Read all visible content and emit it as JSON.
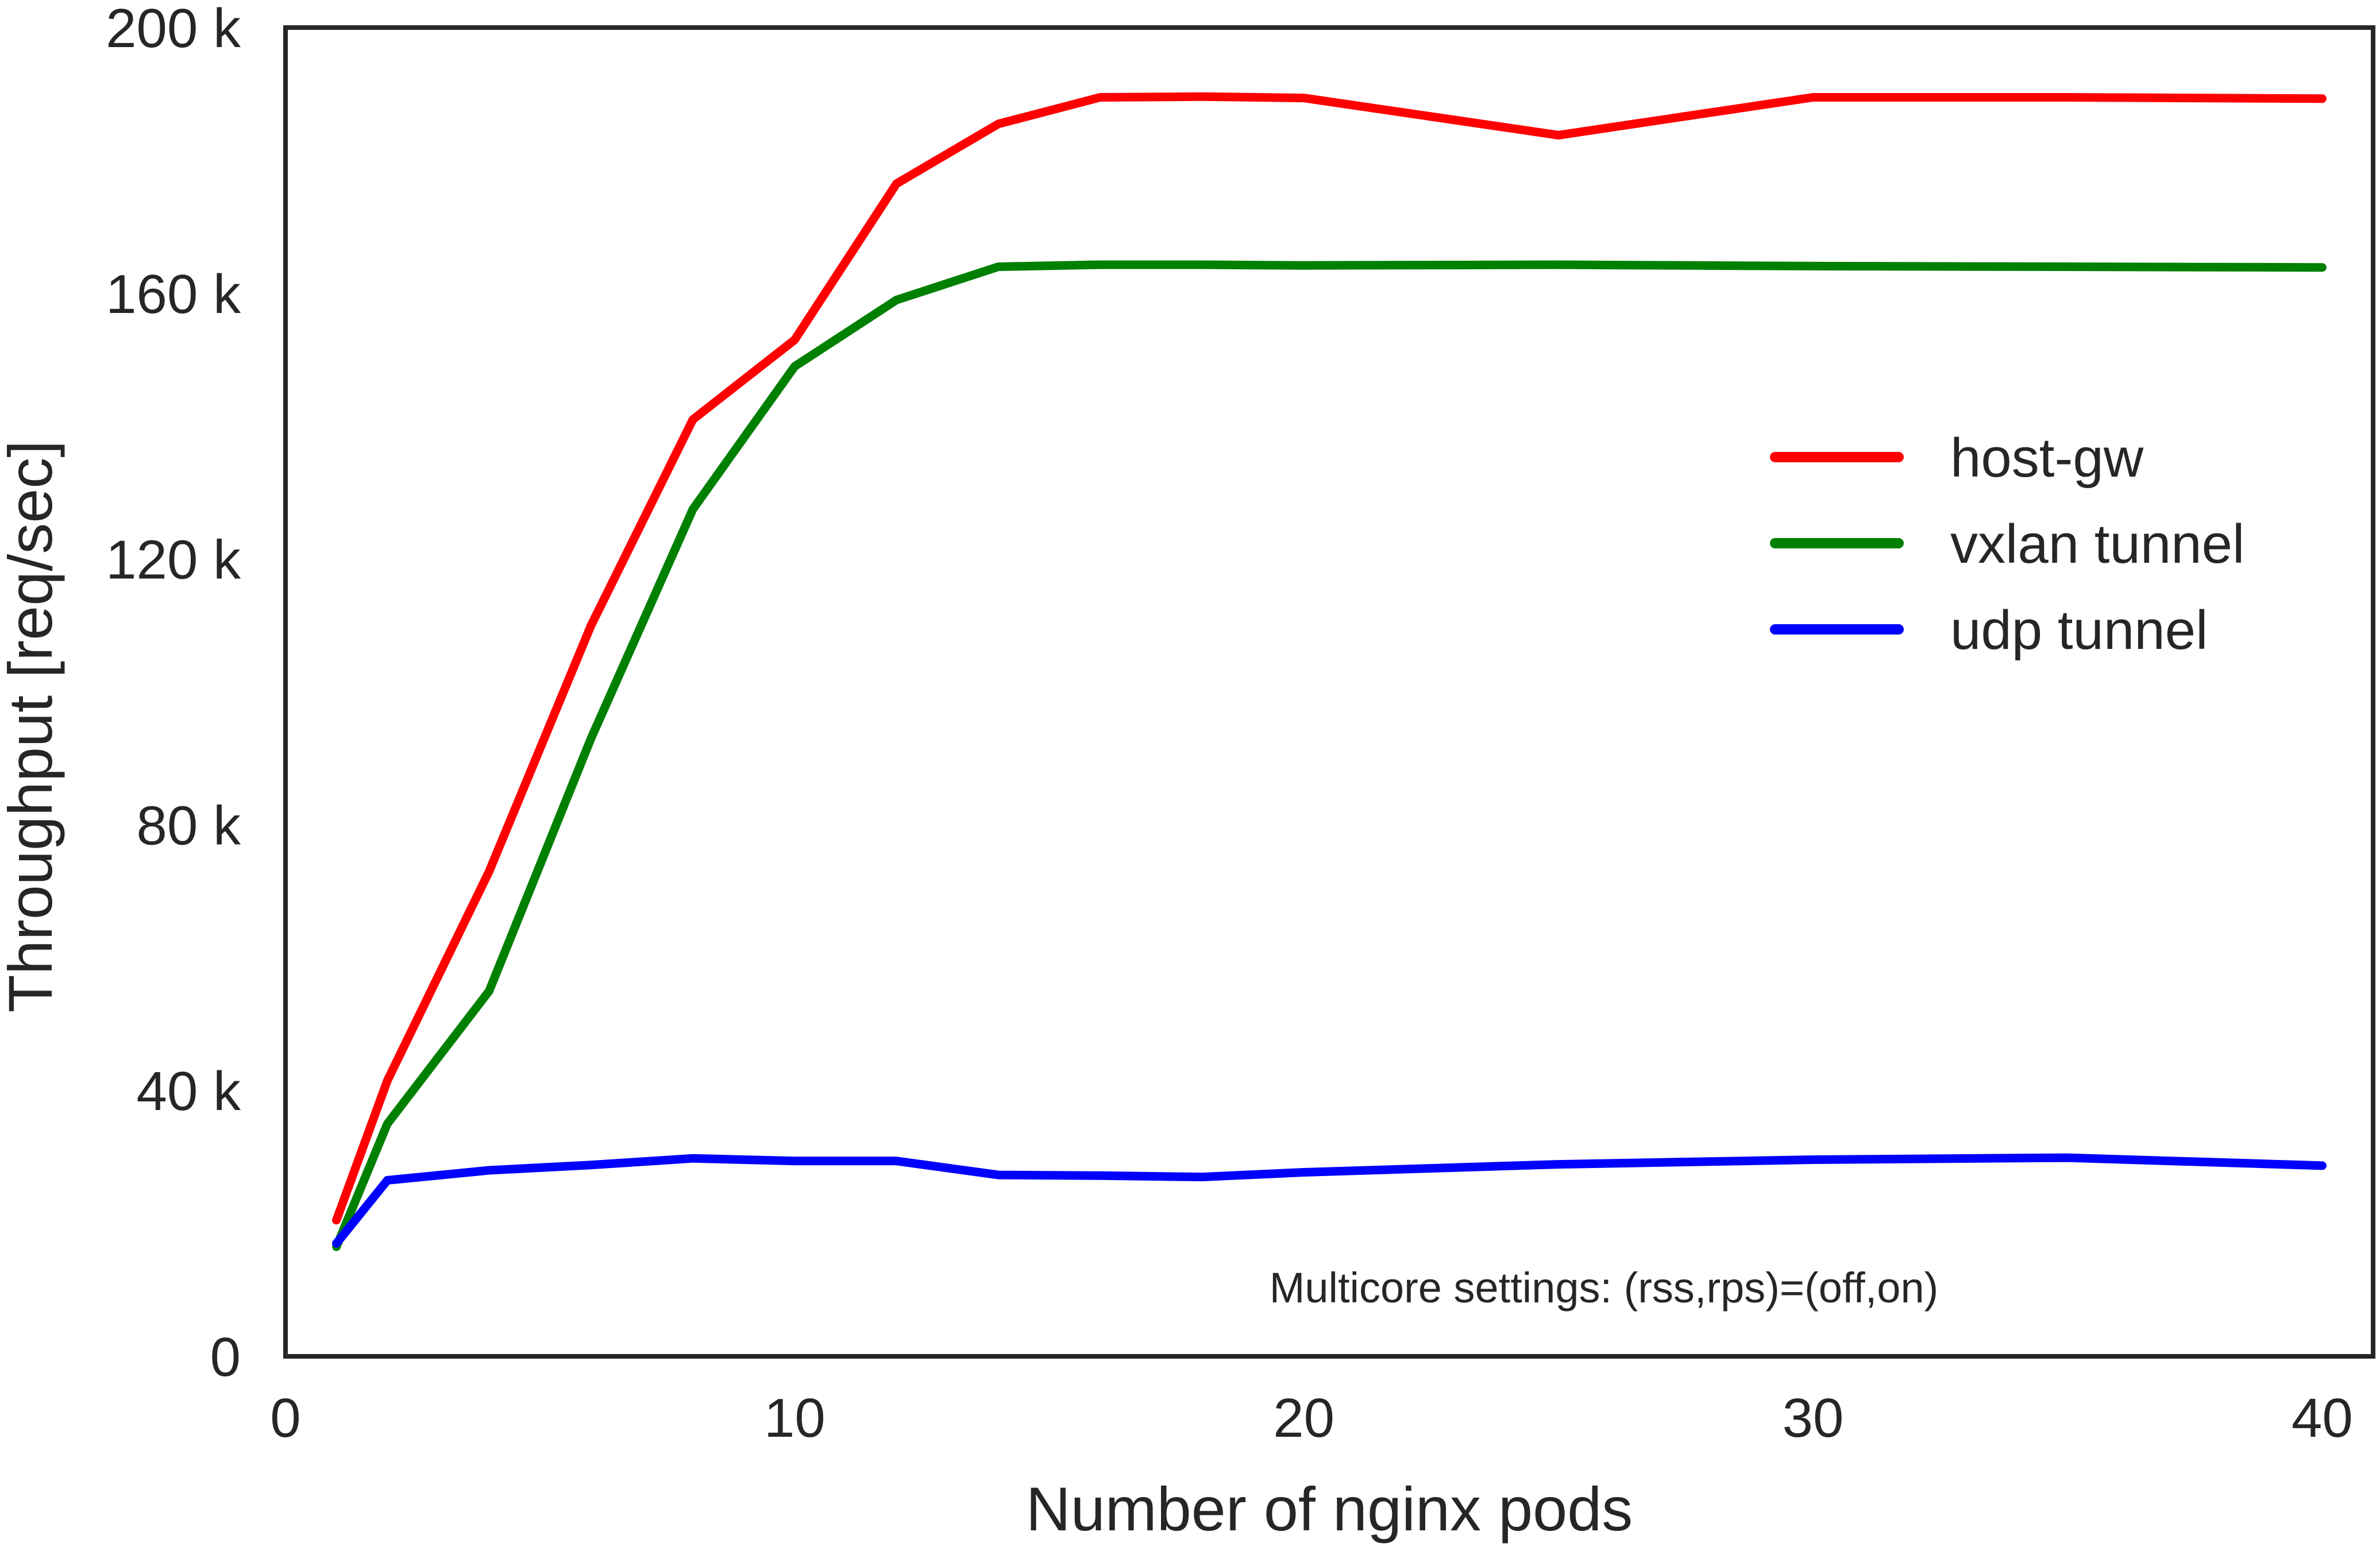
{
  "chart_data": {
    "type": "line",
    "title": "",
    "xlabel": "Number of nginx pods",
    "ylabel": "Throughput [req/sec]",
    "xlim": [
      0,
      41
    ],
    "ylim": [
      0,
      200000
    ],
    "x_ticks": [
      0,
      10,
      20,
      30,
      40
    ],
    "x_tick_labels": [
      "0",
      "10",
      "20",
      "30",
      "40"
    ],
    "y_ticks": [
      0,
      40000,
      80000,
      120000,
      160000,
      200000
    ],
    "y_tick_labels": [
      "0",
      "40 k",
      "80 k",
      "120 k",
      "160 k",
      "200 k"
    ],
    "grid": false,
    "legend_position": "center-right",
    "annotation": "Multicore settings: (rss,rps)=(off,on)",
    "series": [
      {
        "name": "host-gw",
        "color": "#ff0000",
        "x": [
          1,
          2,
          4,
          6,
          8,
          10,
          12,
          14,
          16,
          18,
          20,
          25,
          30,
          35,
          40
        ],
        "y": [
          20500,
          41500,
          73000,
          110000,
          141000,
          153000,
          176500,
          185500,
          189500,
          189600,
          189400,
          183800,
          189500,
          189500,
          189300
        ]
      },
      {
        "name": "vxlan tunnel",
        "color": "#008000",
        "x": [
          1,
          2,
          4,
          6,
          8,
          10,
          12,
          14,
          16,
          18,
          20,
          25,
          30,
          35,
          40
        ],
        "y": [
          16500,
          35000,
          55000,
          93000,
          127500,
          149000,
          159000,
          164000,
          164300,
          164300,
          164200,
          164300,
          164100,
          164000,
          163900
        ]
      },
      {
        "name": "udp tunnel",
        "color": "#0000ff",
        "x": [
          1,
          2,
          4,
          6,
          8,
          10,
          12,
          14,
          16,
          18,
          20,
          25,
          30,
          35,
          40
        ],
        "y": [
          17000,
          26500,
          28000,
          28800,
          29800,
          29400,
          29400,
          27300,
          27200,
          27000,
          27700,
          28900,
          29600,
          29900,
          28700
        ]
      }
    ]
  }
}
